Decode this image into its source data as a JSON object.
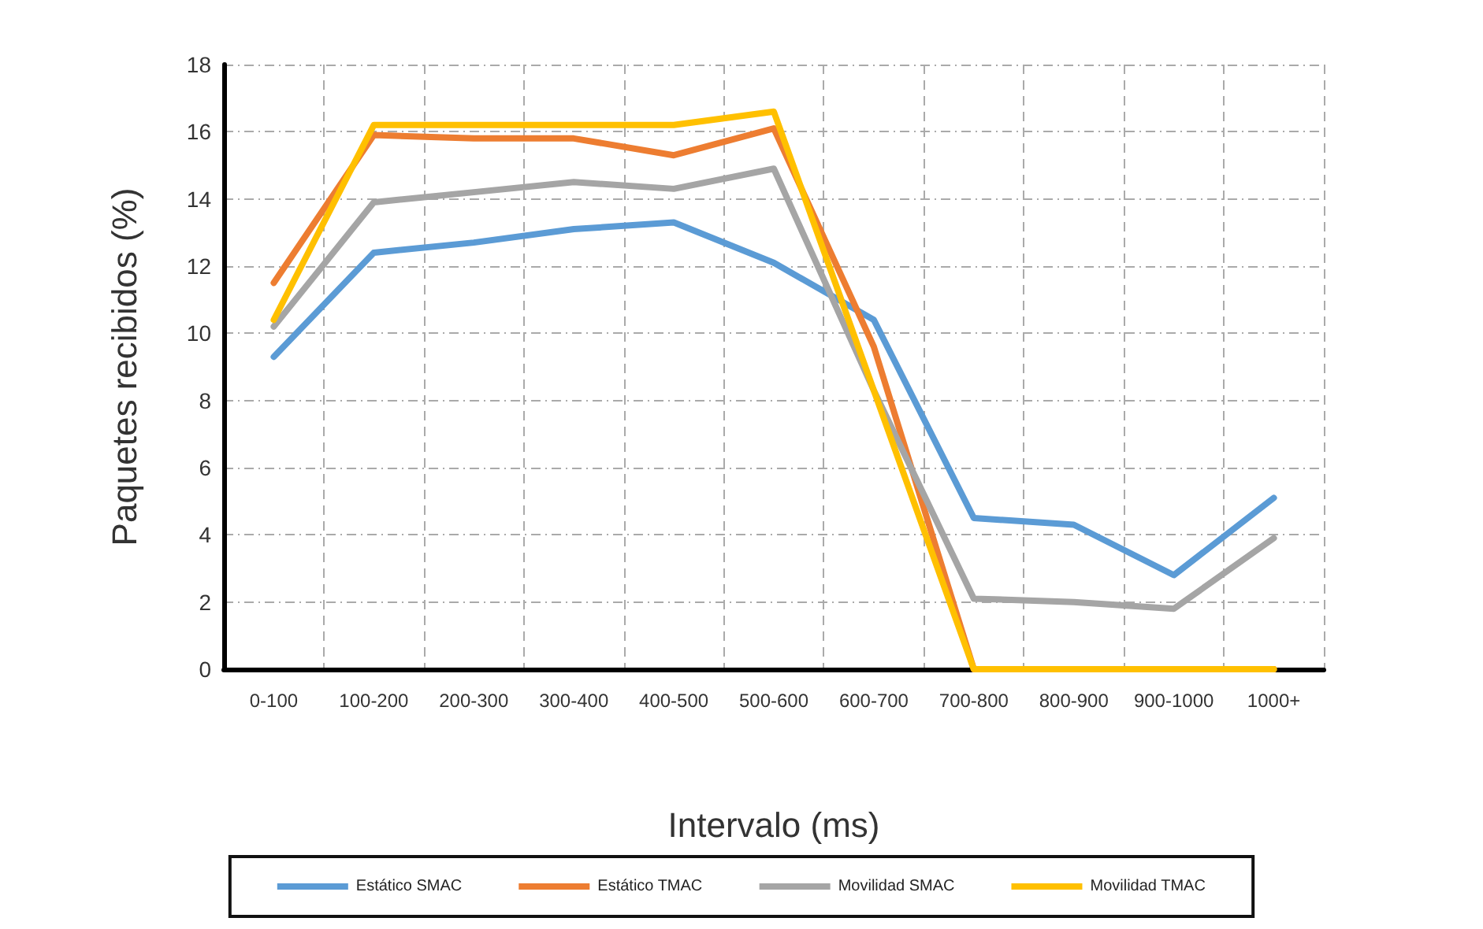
{
  "chart_data": {
    "type": "line",
    "xlabel": "Intervalo (ms)",
    "ylabel": "Paquetes recibidos (%)",
    "categories": [
      "0-100",
      "100-200",
      "200-300",
      "300-400",
      "400-500",
      "500-600",
      "600-700",
      "700-800",
      "800-900",
      "900-1000",
      "1000+"
    ],
    "series": [
      {
        "name": "Estático SMAC",
        "color": "#5b9bd5",
        "values": [
          9.3,
          12.4,
          12.7,
          13.1,
          13.3,
          12.1,
          10.4,
          4.5,
          4.3,
          2.8,
          5.1
        ]
      },
      {
        "name": "Estático TMAC",
        "color": "#ed7d31",
        "values": [
          11.5,
          15.9,
          15.8,
          15.8,
          15.3,
          16.1,
          9.6,
          0,
          0,
          0,
          0
        ]
      },
      {
        "name": "Movilidad SMAC",
        "color": "#a5a5a5",
        "values": [
          10.2,
          13.9,
          14.2,
          14.5,
          14.3,
          14.9,
          8.3,
          2.1,
          2.0,
          1.8,
          3.9
        ]
      },
      {
        "name": "Movilidad TMAC",
        "color": "#ffc000",
        "values": [
          10.4,
          16.2,
          16.2,
          16.2,
          16.2,
          16.6,
          8.3,
          0,
          0,
          0,
          0
        ]
      }
    ],
    "ylim": [
      0,
      18
    ],
    "yticks": [
      0,
      2,
      4,
      6,
      8,
      10,
      12,
      14,
      16,
      18
    ],
    "grid": true,
    "legend": "bottom",
    "marker": "none",
    "line_style": "solid"
  }
}
